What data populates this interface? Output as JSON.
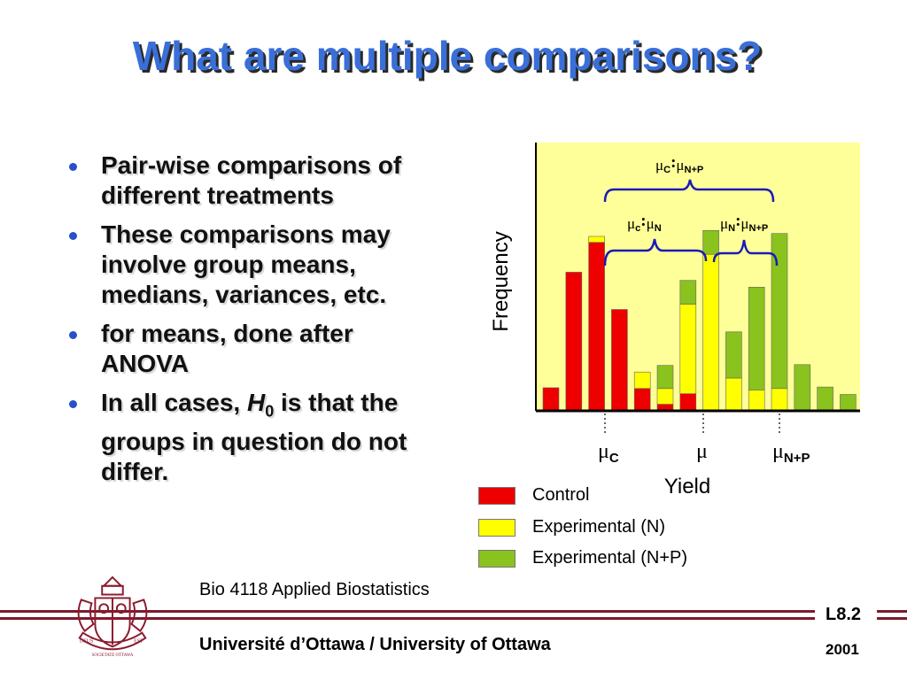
{
  "slide": {
    "title": "What are multiple comparisons?",
    "bullets": [
      {
        "text": "Pair-wise comparisons of different treatments"
      },
      {
        "text": "These comparisons may involve group means, medians, variances, etc."
      },
      {
        "text": "for means, done after ANOVA"
      },
      {
        "text_before": "In all cases, ",
        "h_symbol": "H",
        "h_subscript": "0",
        "text_after": " is that the groups in question do not differ."
      }
    ]
  },
  "chart_data": {
    "type": "bar",
    "stacked": true,
    "xlabel": "Yield",
    "ylabel": "Frequency",
    "ylim": [
      0,
      18
    ],
    "background": "#ffff99",
    "series": [
      {
        "name": "Control",
        "color": "#ee0000",
        "values": [
          1.55,
          9.3,
          11.3,
          6.8,
          1.5,
          0.45,
          1.15,
          0,
          0,
          0,
          0,
          0,
          0,
          0,
          0
        ]
      },
      {
        "name": "Experimental (N)",
        "color": "#ffff00",
        "values": [
          0,
          0,
          0.4,
          0,
          1.1,
          1.05,
          6.0,
          10.5,
          2.2,
          1.4,
          1.5,
          0,
          0,
          0,
          0
        ]
      },
      {
        "name": "Experimental (N+P)",
        "color": "#8ac21e",
        "values": [
          0,
          0,
          0,
          0,
          0,
          1.55,
          1.6,
          1.6,
          3.1,
          6.9,
          10.4,
          3.1,
          1.6,
          1.1,
          0
        ]
      }
    ],
    "mean_markers": [
      {
        "symbol": "μ",
        "subscript": "C"
      },
      {
        "symbol": "μ",
        "subscript": ""
      },
      {
        "symbol": "μ",
        "subscript": "N+P"
      }
    ],
    "comparisons": [
      {
        "left": "μ",
        "left_sub": "C",
        "sep": ":",
        "right": "μ",
        "right_sub": "N+P"
      },
      {
        "left": "μ",
        "left_sub": "c",
        "sep": ":",
        "right": "μ",
        "right_sub": "N"
      },
      {
        "left": "μ",
        "left_sub": "N",
        "sep": ":",
        "right": "μ",
        "right_sub": "N+P"
      }
    ]
  },
  "legend": [
    {
      "label": "Control",
      "color": "#ee0000"
    },
    {
      "label": "Experimental (N)",
      "color": "#ffff00"
    },
    {
      "label": "Experimental (N+P)",
      "color": "#8ac21e"
    }
  ],
  "footer": {
    "course": "Bio 4118 Applied Biostatistics",
    "university": "Université d’Ottawa / University of Ottawa",
    "lecture": "L8.2",
    "year": "2001"
  },
  "crest": {
    "left_scroll": "DEUS",
    "right_scroll": "EST",
    "motto": "SOCIETATE OTTAWA",
    "color": "#8b1a2e"
  }
}
